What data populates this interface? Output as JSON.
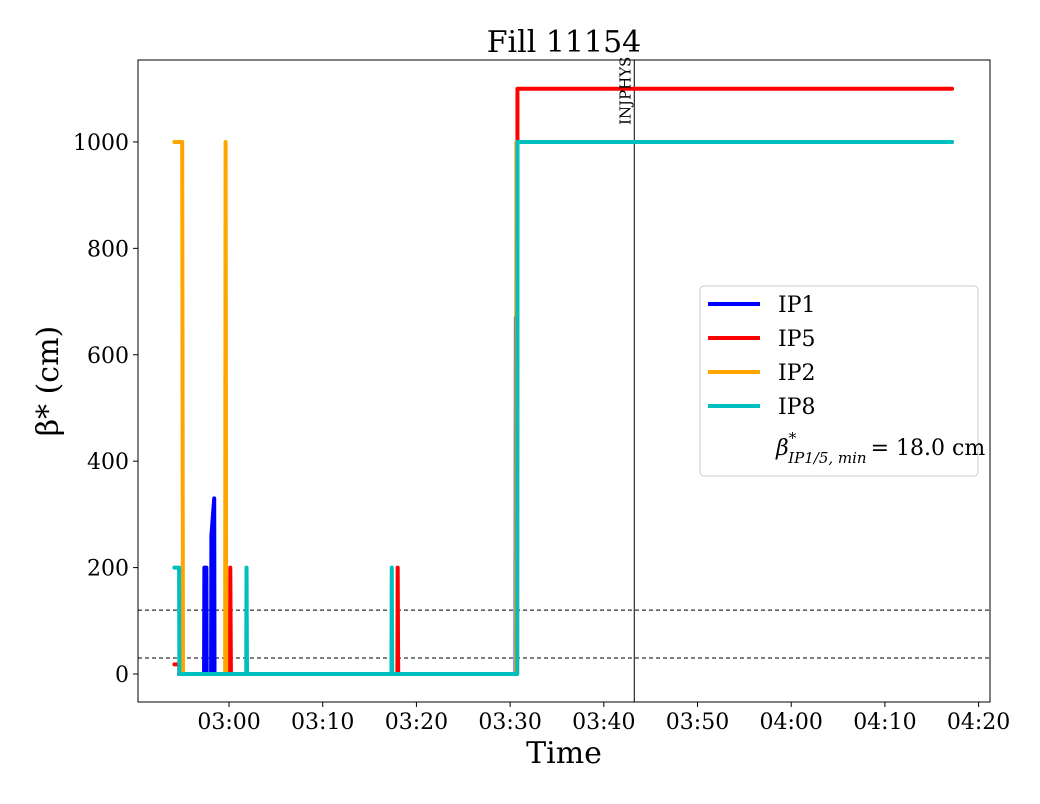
{
  "chart_data": {
    "type": "line",
    "title": "Fill 11154",
    "xlabel": "Time",
    "ylabel": "β* (cm)",
    "xlim": [
      "02:50:17",
      "04:21:13"
    ],
    "ylim": [
      -52.6,
      1154
    ],
    "xticks": [
      "03:00",
      "03:10",
      "03:20",
      "03:30",
      "03:40",
      "03:50",
      "04:00",
      "04:10",
      "04:20"
    ],
    "yticks": [
      0,
      200,
      400,
      600,
      800,
      1000
    ],
    "grid": false,
    "legend_placement": "center-right",
    "hlines": [
      120,
      30
    ],
    "vline": {
      "time": "03:43:15",
      "label": "INJPHYS"
    },
    "legend_extra": {
      "symbol": "β",
      "sup": "*",
      "sub": "IP1/5, min",
      "text": "= 18.0 cm"
    },
    "series": [
      {
        "name": "IP1",
        "color": "#0000ff",
        "points": [
          [
            "02:54:40",
            0
          ],
          [
            "02:57:20",
            0
          ],
          [
            "02:57:22",
            200
          ],
          [
            "02:57:35",
            200
          ],
          [
            "02:57:37",
            0
          ],
          [
            "02:58:05",
            0
          ],
          [
            "02:58:07",
            260
          ],
          [
            "02:58:25",
            330
          ],
          [
            "02:58:27",
            0
          ],
          [
            "03:30:35",
            0
          ],
          [
            "03:30:37",
            670
          ]
        ]
      },
      {
        "name": "IP5",
        "color": "#ff0000",
        "points": [
          [
            "02:54:10",
            18
          ],
          [
            "02:54:40",
            18
          ],
          [
            "02:54:42",
            0
          ],
          [
            "03:00:05",
            0
          ],
          [
            "03:00:08",
            200
          ],
          [
            "03:00:12",
            0
          ],
          [
            "03:17:58",
            0
          ],
          [
            "03:18:00",
            200
          ],
          [
            "03:18:03",
            0
          ],
          [
            "03:30:45",
            0
          ],
          [
            "03:30:47",
            1100
          ],
          [
            "04:17:10",
            1100
          ]
        ]
      },
      {
        "name": "IP2",
        "color": "#ffa500",
        "points": [
          [
            "02:54:10",
            1000
          ],
          [
            "02:55:00",
            1000
          ],
          [
            "02:55:05",
            0
          ],
          [
            "02:59:35",
            0
          ],
          [
            "02:59:38",
            1000
          ],
          [
            "02:59:42",
            0
          ],
          [
            "03:30:38",
            0
          ],
          [
            "03:30:40",
            1000
          ],
          [
            "04:17:10",
            1000
          ]
        ]
      },
      {
        "name": "IP8",
        "color": "#00bfbf",
        "points": [
          [
            "02:54:10",
            200
          ],
          [
            "02:54:40",
            200
          ],
          [
            "02:54:42",
            0
          ],
          [
            "03:01:50",
            0
          ],
          [
            "03:01:52",
            200
          ],
          [
            "03:01:55",
            0
          ],
          [
            "03:17:20",
            0
          ],
          [
            "03:17:22",
            200
          ],
          [
            "03:17:25",
            0
          ],
          [
            "03:30:45",
            0
          ],
          [
            "03:30:47",
            1000
          ],
          [
            "04:17:10",
            1000
          ]
        ]
      }
    ]
  }
}
